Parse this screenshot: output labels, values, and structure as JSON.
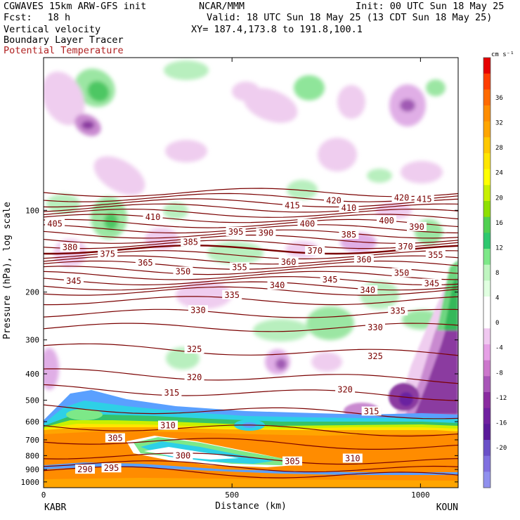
{
  "header": {
    "model_title": "CGWAVES 15km ARW-GFS init",
    "fcst_label": "Fcst:",
    "fcst_value": "18 h",
    "field1": "Vertical velocity",
    "field2": "Boundary Layer Tracer",
    "field3": "Potential Temperature",
    "center": "NCAR/MMM",
    "init": "Init: 00 UTC Sun 18 May 25",
    "valid": "Valid: 18 UTC Sun 18 May 25 (13 CDT Sun 18 May 25)",
    "xy": "XY= 187.4,173.8 to 191.8,100.1"
  },
  "colors": {
    "theta": "#7a0000",
    "box": "#000000"
  },
  "chart_data": {
    "type": "heatmap",
    "xlabel": "Distance (km)",
    "ylabel": "Pressure (hPa), log scale",
    "xlim": [
      0,
      1100
    ],
    "x_ticks": [
      "0",
      "500",
      "1000"
    ],
    "x_tick_values": [
      0,
      500,
      1000
    ],
    "endpoints": {
      "left": "KABR",
      "right": "KOUN"
    },
    "y_scale": "log",
    "y_ticks": [
      "100",
      "200",
      "300",
      "400",
      "500",
      "600",
      "700",
      "800",
      "900",
      "1000"
    ],
    "y_tick_values": [
      100,
      200,
      300,
      400,
      500,
      600,
      700,
      800,
      900,
      1000
    ],
    "colorbar": {
      "unit": "cm s⁻¹",
      "labels": [
        "36",
        "32",
        "28",
        "24",
        "20",
        "16",
        "12",
        "8",
        "4",
        "0",
        "-4",
        "-8",
        "-12",
        "-16",
        "-20"
      ],
      "colors": [
        "#e60000",
        "#ff3c00",
        "#ff6a00",
        "#ff8c00",
        "#ffa500",
        "#ffc800",
        "#ffe600",
        "#ffff00",
        "#c8f000",
        "#8ee000",
        "#50d050",
        "#2ec86e",
        "#7de888",
        "#bff5c0",
        "#e0ffe0",
        "#ffffff",
        "#ffffff",
        "#f0c8f0",
        "#e6a0e6",
        "#cc77cc",
        "#a855b8",
        "#8a2aa0",
        "#7020a0",
        "#5a1a9a",
        "#6a50c8",
        "#8070e0",
        "#9090ee"
      ]
    },
    "theta_contour_labels": [
      {
        "label": "420",
        "x": 770,
        "p": 92
      },
      {
        "label": "420",
        "x": 950,
        "p": 90
      },
      {
        "label": "415",
        "x": 660,
        "p": 96
      },
      {
        "label": "415",
        "x": 1010,
        "p": 91
      },
      {
        "label": "410",
        "x": 290,
        "p": 106
      },
      {
        "label": "410",
        "x": 810,
        "p": 98
      },
      {
        "label": "405",
        "x": 30,
        "p": 112
      },
      {
        "label": "400",
        "x": 700,
        "p": 112
      },
      {
        "label": "400",
        "x": 910,
        "p": 109
      },
      {
        "label": "395",
        "x": 510,
        "p": 120
      },
      {
        "label": "390",
        "x": 590,
        "p": 121
      },
      {
        "label": "390",
        "x": 990,
        "p": 115
      },
      {
        "label": "385",
        "x": 390,
        "p": 131
      },
      {
        "label": "385",
        "x": 810,
        "p": 123
      },
      {
        "label": "380",
        "x": 70,
        "p": 137
      },
      {
        "label": "375",
        "x": 170,
        "p": 145
      },
      {
        "label": "370",
        "x": 720,
        "p": 141
      },
      {
        "label": "370",
        "x": 960,
        "p": 136
      },
      {
        "label": "365",
        "x": 270,
        "p": 156
      },
      {
        "label": "360",
        "x": 650,
        "p": 155
      },
      {
        "label": "360",
        "x": 850,
        "p": 152
      },
      {
        "label": "355",
        "x": 520,
        "p": 162
      },
      {
        "label": "355",
        "x": 1040,
        "p": 146
      },
      {
        "label": "350",
        "x": 370,
        "p": 168
      },
      {
        "label": "350",
        "x": 950,
        "p": 170
      },
      {
        "label": "345",
        "x": 80,
        "p": 182
      },
      {
        "label": "345",
        "x": 760,
        "p": 180
      },
      {
        "label": "345",
        "x": 1030,
        "p": 186
      },
      {
        "label": "340",
        "x": 620,
        "p": 189
      },
      {
        "label": "340",
        "x": 860,
        "p": 197
      },
      {
        "label": "335",
        "x": 500,
        "p": 205
      },
      {
        "label": "335",
        "x": 940,
        "p": 235
      },
      {
        "label": "330",
        "x": 410,
        "p": 233
      },
      {
        "label": "330",
        "x": 880,
        "p": 270
      },
      {
        "label": "325",
        "x": 400,
        "p": 325
      },
      {
        "label": "325",
        "x": 880,
        "p": 345
      },
      {
        "label": "320",
        "x": 400,
        "p": 412
      },
      {
        "label": "320",
        "x": 800,
        "p": 458
      },
      {
        "label": "315",
        "x": 340,
        "p": 470
      },
      {
        "label": "315",
        "x": 870,
        "p": 550
      },
      {
        "label": "310",
        "x": 330,
        "p": 620
      },
      {
        "label": "310",
        "x": 820,
        "p": 820
      },
      {
        "label": "305",
        "x": 190,
        "p": 690
      },
      {
        "label": "305",
        "x": 660,
        "p": 840
      },
      {
        "label": "300",
        "x": 370,
        "p": 800
      },
      {
        "label": "295",
        "x": 180,
        "p": 890
      },
      {
        "label": "290",
        "x": 110,
        "p": 900
      }
    ]
  }
}
